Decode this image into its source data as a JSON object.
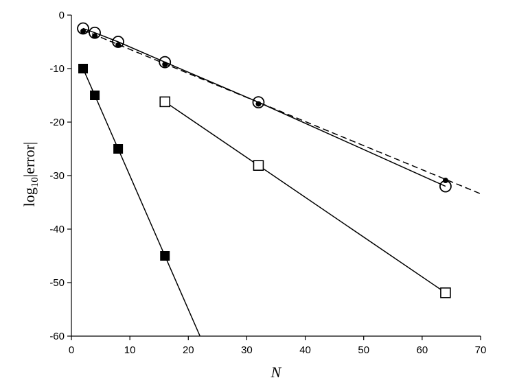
{
  "chart_data": {
    "type": "line",
    "xlabel": "N",
    "ylabel_main": "log",
    "ylabel_sub": "10",
    "ylabel_rest": "|error|",
    "xlim": [
      0,
      70
    ],
    "ylim": [
      -60,
      0
    ],
    "xticks": [
      0,
      10,
      20,
      30,
      40,
      50,
      60,
      70
    ],
    "yticks": [
      0,
      -10,
      -20,
      -30,
      -40,
      -50,
      -60
    ],
    "grid": false,
    "series": [
      {
        "marker": "filled-square",
        "line": "solid",
        "x": [
          2,
          4,
          8,
          16
        ],
        "y": [
          -10,
          -15,
          -25,
          -45
        ],
        "line_extends_to": [
          22,
          -60
        ]
      },
      {
        "marker": "open-square",
        "line": "solid",
        "x": [
          16,
          32,
          64
        ],
        "y": [
          -16.2,
          -28.1,
          -51.9
        ]
      },
      {
        "marker": "open-circle",
        "line": "solid",
        "x": [
          2,
          4,
          8,
          16,
          32,
          64
        ],
        "y": [
          -2.5,
          -3.3,
          -5.0,
          -8.8,
          -16.3,
          -32.0
        ]
      },
      {
        "marker": "filled-dot",
        "line": "none",
        "x": [
          2,
          4,
          8,
          16,
          32,
          64
        ],
        "y": [
          -3.0,
          -3.9,
          -5.6,
          -9.2,
          -16.6,
          -30.9
        ]
      },
      {
        "marker": "none",
        "line": "dashed",
        "x": [
          2,
          70
        ],
        "y": [
          -2.8,
          -33.4
        ]
      }
    ]
  }
}
